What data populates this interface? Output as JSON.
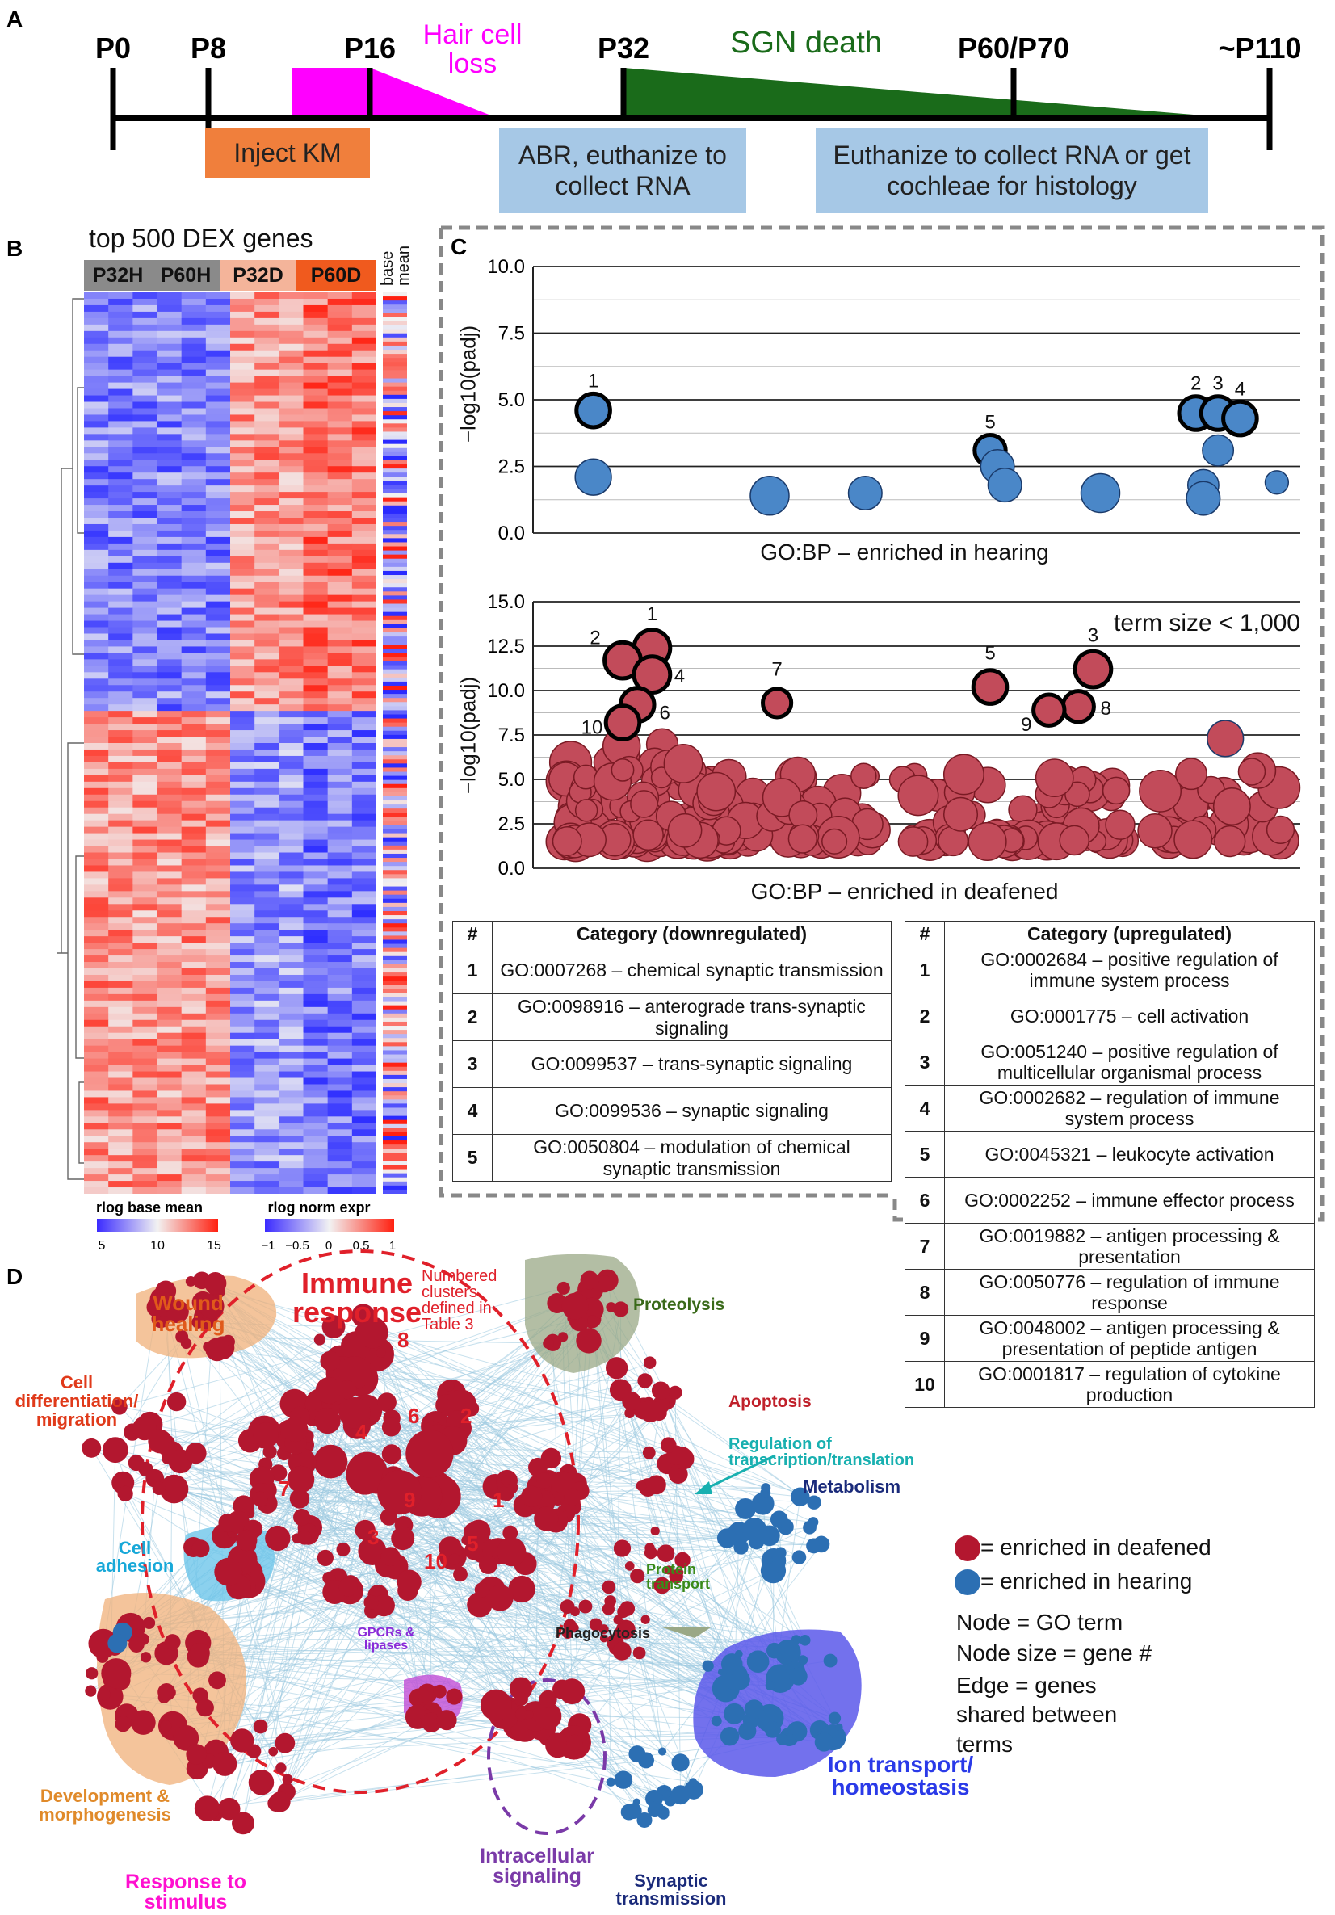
{
  "panel_letters": {
    "a": "A",
    "b": "B",
    "c": "C",
    "d": "D"
  },
  "panel_a": {
    "timepoints": [
      "P0",
      "P8",
      "P16",
      "P32",
      "P60/P70",
      "~P110"
    ],
    "hair_cell_loss": "Hair cell loss",
    "sgn_death": "SGN death",
    "inject": "Inject KM",
    "abr": "ABR, euthanize to collect RNA",
    "euthanize": "Euthanize to collect RNA or get cochleae for histology",
    "colors": {
      "magenta": "#ff00ff",
      "green": "#1a6b1a",
      "orange": "#f07f3c",
      "blue": "#a6c8e6"
    }
  },
  "panel_b": {
    "title": "top 500 DEX genes",
    "groups": [
      "P32H",
      "P60H",
      "P32D",
      "P60D"
    ],
    "base_mean_label": "base mean",
    "colorbar_base": {
      "label": "rlog base mean",
      "ticks": [
        "5",
        "10",
        "15"
      ]
    },
    "colorbar_norm": {
      "label": "rlog norm expr",
      "ticks": [
        "−1",
        "−0.5",
        "0",
        "0.5",
        "1"
      ]
    }
  },
  "chart_data": [
    {
      "type": "scatter",
      "title": "",
      "xlabel": "GO:BP – enriched in hearing",
      "ylabel": "−log10(padj)",
      "ylim": [
        0,
        10
      ],
      "yticks": [
        "0.0",
        "2.5",
        "5.0",
        "7.5",
        "10.0"
      ],
      "color": "#4a87c8",
      "points": [
        {
          "x": 0.06,
          "y": 4.6,
          "r": 1.3,
          "label": "1"
        },
        {
          "x": 0.06,
          "y": 2.1,
          "r": 1.4
        },
        {
          "x": 0.3,
          "y": 1.4,
          "r": 1.5
        },
        {
          "x": 0.43,
          "y": 1.5,
          "r": 1.3
        },
        {
          "x": 0.6,
          "y": 3.1,
          "r": 1.2,
          "label": "5"
        },
        {
          "x": 0.61,
          "y": 2.5,
          "r": 1.3
        },
        {
          "x": 0.62,
          "y": 1.8,
          "r": 1.3
        },
        {
          "x": 0.75,
          "y": 1.5,
          "r": 1.5
        },
        {
          "x": 0.88,
          "y": 4.5,
          "r": 1.3,
          "label": "2"
        },
        {
          "x": 0.91,
          "y": 4.5,
          "r": 1.3,
          "label": "3"
        },
        {
          "x": 0.94,
          "y": 4.3,
          "r": 1.3,
          "label": "4"
        },
        {
          "x": 0.91,
          "y": 3.1,
          "r": 1.2
        },
        {
          "x": 0.89,
          "y": 1.8,
          "r": 1.2
        },
        {
          "x": 0.89,
          "y": 1.3,
          "r": 1.3
        },
        {
          "x": 0.99,
          "y": 1.9,
          "r": 0.9
        }
      ]
    },
    {
      "type": "scatter",
      "title": "term size < 1,000",
      "xlabel": "GO:BP – enriched in deafened",
      "ylabel": "−log10(padj)",
      "ylim": [
        0,
        15
      ],
      "yticks": [
        "0.0",
        "2.5",
        "5.0",
        "7.5",
        "10.0",
        "12.5",
        "15.0"
      ],
      "color": "#c24b5a",
      "points": [
        {
          "x": 0.14,
          "y": 12.4,
          "r": 1.4,
          "label": "1"
        },
        {
          "x": 0.1,
          "y": 11.7,
          "r": 1.4,
          "label": "2"
        },
        {
          "x": 0.74,
          "y": 11.2,
          "r": 1.4,
          "label": "3"
        },
        {
          "x": 0.14,
          "y": 10.9,
          "r": 1.4,
          "label": "4"
        },
        {
          "x": 0.6,
          "y": 10.2,
          "r": 1.3,
          "label": "5"
        },
        {
          "x": 0.12,
          "y": 9.2,
          "r": 1.3,
          "label": "6"
        },
        {
          "x": 0.31,
          "y": 9.3,
          "r": 1.1,
          "label": "7"
        },
        {
          "x": 0.72,
          "y": 9.1,
          "r": 1.2,
          "label": "8"
        },
        {
          "x": 0.68,
          "y": 8.9,
          "r": 1.2,
          "label": "9"
        },
        {
          "x": 0.1,
          "y": 8.2,
          "r": 1.3,
          "label": "10"
        },
        {
          "x": 0.92,
          "y": 7.3,
          "r": 1.4
        }
      ]
    }
  ],
  "table_down": {
    "headers": [
      "#",
      "Category (downregulated)"
    ],
    "rows": [
      [
        "1",
        "GO:0007268 – chemical synaptic transmission"
      ],
      [
        "2",
        "GO:0098916 – anterograde trans-synaptic signaling"
      ],
      [
        "3",
        "GO:0099537 – trans-synaptic signaling"
      ],
      [
        "4",
        "GO:0099536 – synaptic signaling"
      ],
      [
        "5",
        "GO:0050804 – modulation of chemical synaptic transmission"
      ]
    ]
  },
  "table_up": {
    "headers": [
      "#",
      "Category (upregulated)"
    ],
    "rows": [
      [
        "1",
        "GO:0002684 – positive regulation of immune system process"
      ],
      [
        "2",
        "GO:0001775 – cell activation"
      ],
      [
        "3",
        "GO:0051240 – positive regulation of multicellular organismal process"
      ],
      [
        "4",
        "GO:0002682 – regulation of immune system process"
      ],
      [
        "5",
        "GO:0045321 – leukocyte activation"
      ],
      [
        "6",
        "GO:0002252 – immune effector process"
      ],
      [
        "7",
        "GO:0019882 – antigen processing & presentation"
      ],
      [
        "8",
        "GO:0050776 – regulation of immune response"
      ],
      [
        "9",
        "GO:0048002 – antigen processing & presentation of peptide antigen"
      ],
      [
        "10",
        "GO:0001817 – regulation of cytokine production"
      ]
    ]
  },
  "panel_d": {
    "immune": "Immune response",
    "numbered_note": "Numbered clusters defined in Table 3",
    "cluster_numbers": [
      "1",
      "2",
      "3",
      "4",
      "5",
      "6",
      "7",
      "8",
      "9",
      "10"
    ],
    "labels": {
      "wound": "Wound healing",
      "celldiff": "Cell differentiation/ migration",
      "proteolysis": "Proteolysis",
      "apoptosis": "Apoptosis",
      "regulation": "Regulation of transcription/translation",
      "metabolism": "Metabolism",
      "adhesion": "Cell adhesion",
      "protein_transport": "Protein transport",
      "phagocytosis": "Phagocytosis",
      "gpcr": "GPCRs & lipases",
      "development": "Development & morphogenesis",
      "response": "Response to stimulus",
      "intracellular": "Intracellular signaling",
      "synaptic": "Synaptic transmission",
      "ion": "Ion transport/ homeostasis"
    },
    "legend": {
      "deafened": "= enriched in deafened",
      "hearing": "= enriched in hearing",
      "node": "Node = GO term",
      "node_size": "Node size = gene #",
      "edge": "Edge = genes shared between terms"
    },
    "colors": {
      "red": "#b3172f",
      "blue": "#2c6fb3",
      "edge": "#9cc9e0"
    }
  }
}
